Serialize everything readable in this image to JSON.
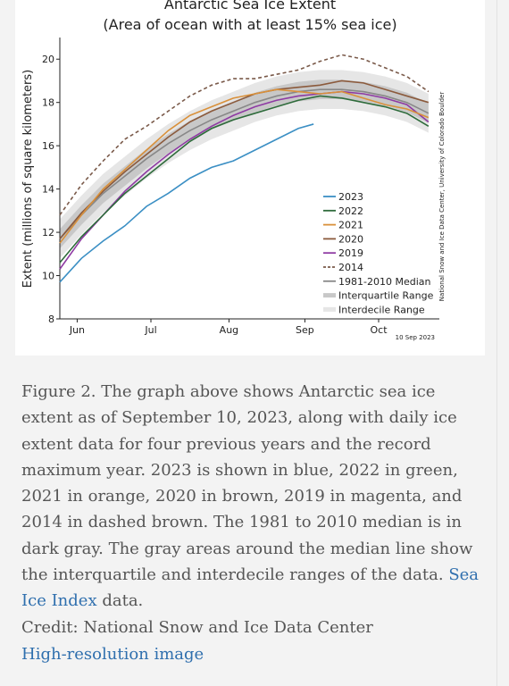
{
  "chart_data": {
    "type": "line",
    "title": "Antarctic Sea Ice Extent",
    "subtitle": "(Area of ocean with at least 15% sea ice)",
    "ylabel": "Extent (millions of square kilometers)",
    "xlabel": "",
    "ylim": [
      8,
      21
    ],
    "yticks": [
      "8",
      "10",
      "12",
      "14",
      "16",
      "18",
      "20"
    ],
    "xticks": [
      "Jun",
      "Jul",
      "Aug",
      "Sep",
      "Oct"
    ],
    "legend_position": "center-right",
    "grid": false,
    "colors": {
      "y2023": "#3b8fc4",
      "y2022": "#2e6b3b",
      "y2021": "#d9903a",
      "y2020": "#8b5a3c",
      "y2019": "#8e3aa3",
      "y2014": "#7a5a4a",
      "median": "#888888",
      "interquartile": "#c8c8c8",
      "interdecile": "#e6e6e6"
    },
    "series": [
      {
        "name": "2023",
        "style": "solid",
        "color": "#3b8fc4",
        "x": [
          0,
          10,
          20,
          30,
          40,
          50,
          60,
          70,
          80,
          90,
          100,
          110,
          117
        ],
        "y": [
          9.7,
          10.8,
          11.6,
          12.3,
          13.2,
          13.8,
          14.5,
          15.0,
          15.3,
          15.8,
          16.3,
          16.8,
          17.0
        ]
      },
      {
        "name": "2022",
        "style": "solid",
        "color": "#2e6b3b",
        "x": [
          0,
          10,
          20,
          30,
          40,
          50,
          60,
          70,
          80,
          90,
          100,
          110,
          120,
          130,
          140,
          150,
          160,
          170
        ],
        "y": [
          10.6,
          11.8,
          12.8,
          13.8,
          14.6,
          15.4,
          16.2,
          16.8,
          17.2,
          17.5,
          17.8,
          18.1,
          18.3,
          18.2,
          18.0,
          17.8,
          17.5,
          16.9
        ]
      },
      {
        "name": "2021",
        "style": "solid",
        "color": "#d9903a",
        "x": [
          0,
          10,
          20,
          30,
          40,
          50,
          60,
          70,
          80,
          90,
          100,
          110,
          120,
          130,
          140,
          150,
          160,
          170
        ],
        "y": [
          11.5,
          12.8,
          14.0,
          14.9,
          15.8,
          16.7,
          17.4,
          17.8,
          18.2,
          18.4,
          18.6,
          18.5,
          18.4,
          18.5,
          18.2,
          17.9,
          17.7,
          17.3
        ]
      },
      {
        "name": "2020",
        "style": "solid",
        "color": "#8b5a3c",
        "x": [
          0,
          10,
          20,
          30,
          40,
          50,
          60,
          70,
          80,
          90,
          100,
          110,
          120,
          130,
          140,
          150,
          160,
          170
        ],
        "y": [
          11.7,
          12.9,
          13.9,
          14.8,
          15.6,
          16.4,
          17.1,
          17.6,
          18.0,
          18.4,
          18.6,
          18.7,
          18.8,
          19.0,
          18.9,
          18.6,
          18.3,
          18.0
        ]
      },
      {
        "name": "2019",
        "style": "solid",
        "color": "#8e3aa3",
        "x": [
          0,
          10,
          20,
          30,
          40,
          50,
          60,
          70,
          80,
          90,
          100,
          110,
          120,
          130,
          140,
          150,
          160,
          170
        ],
        "y": [
          10.3,
          11.7,
          12.8,
          13.9,
          14.8,
          15.6,
          16.3,
          16.9,
          17.4,
          17.8,
          18.1,
          18.3,
          18.4,
          18.5,
          18.4,
          18.2,
          17.9,
          17.1
        ]
      },
      {
        "name": "2014",
        "style": "dashed",
        "color": "#7a5a4a",
        "x": [
          0,
          10,
          20,
          30,
          40,
          50,
          60,
          70,
          80,
          90,
          100,
          110,
          120,
          130,
          140,
          150,
          160,
          170
        ],
        "y": [
          12.8,
          14.2,
          15.3,
          16.3,
          16.9,
          17.6,
          18.3,
          18.8,
          19.1,
          19.1,
          19.3,
          19.5,
          19.9,
          20.2,
          20.0,
          19.6,
          19.2,
          18.5
        ]
      },
      {
        "name": "1981-2010 Median",
        "style": "solid",
        "color": "#888888",
        "x": [
          0,
          10,
          20,
          30,
          40,
          50,
          60,
          70,
          80,
          90,
          100,
          110,
          120,
          130,
          140,
          150,
          160,
          170
        ],
        "y": [
          11.7,
          12.8,
          13.8,
          14.6,
          15.4,
          16.1,
          16.7,
          17.2,
          17.6,
          18.0,
          18.3,
          18.5,
          18.6,
          18.6,
          18.5,
          18.3,
          18.0,
          17.5
        ]
      }
    ],
    "bands": [
      {
        "name": "Interdecile Range",
        "width": 0.9
      },
      {
        "name": "Interquartile Range",
        "width": 0.45
      }
    ],
    "legend": [
      "2023",
      "2022",
      "2021",
      "2020",
      "2019",
      "2014",
      "1981-2010 Median",
      "Interquartile Range",
      "Interdecile Range"
    ],
    "side_credit": "National Snow and Ice Data Center, University of Colorado Boulder",
    "date_stamp": "10 Sep 2023"
  },
  "caption": {
    "text": "Figure 2. The graph above shows Antarctic sea ice extent as of September 10, 2023, along with daily ice extent data for four previous years and the record maximum year. 2023 is shown in blue, 2022 in green, 2021 in orange, 2020 in brown, 2019 in magenta, and 2014 in dashed brown. The 1981 to 2010 median is in dark gray. The gray areas around the median line show the interquartile and interdecile ranges of the data.",
    "link_text": "Sea Ice Index",
    "tail": " data."
  },
  "credit": {
    "text": "Credit: National Snow and Ice Data Center",
    "link_text": "High-resolution image"
  }
}
